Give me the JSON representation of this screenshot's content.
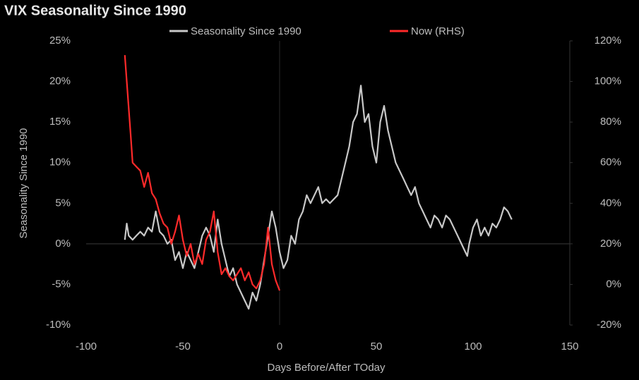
{
  "chart_data": {
    "type": "line",
    "title": "VIX Seasonality Since 1990",
    "xlabel": "Days Before/After TOday",
    "ylabel": "Seasonality Since 1990",
    "xlim": [
      -100,
      150
    ],
    "xticks": [
      -100,
      -50,
      0,
      50,
      100,
      150
    ],
    "ylim": [
      -10,
      25
    ],
    "yticks": [
      {
        "value": -10,
        "label": "-10%"
      },
      {
        "value": -5,
        "label": "-5%"
      },
      {
        "value": 0,
        "label": "0%"
      },
      {
        "value": 5,
        "label": "5%"
      },
      {
        "value": 10,
        "label": "10%"
      },
      {
        "value": 15,
        "label": "15%"
      },
      {
        "value": 20,
        "label": "20%"
      },
      {
        "value": 25,
        "label": "25%"
      }
    ],
    "y2lim": [
      -20,
      120
    ],
    "y2ticks": [
      {
        "value": -20,
        "label": "-20%"
      },
      {
        "value": 0,
        "label": "0%"
      },
      {
        "value": 20,
        "label": "20%"
      },
      {
        "value": 40,
        "label": "40%"
      },
      {
        "value": 60,
        "label": "60%"
      },
      {
        "value": 80,
        "label": "80%"
      },
      {
        "value": 100,
        "label": "100%"
      },
      {
        "value": 120,
        "label": "120%"
      }
    ],
    "series": [
      {
        "name": "Seasonality Since 1990",
        "color": "#c8c8c8",
        "axis": "y",
        "x": [
          -80,
          -79,
          -78,
          -76,
          -74,
          -72,
          -70,
          -68,
          -66,
          -64,
          -62,
          -60,
          -58,
          -56,
          -54,
          -52,
          -50,
          -48,
          -46,
          -44,
          -42,
          -40,
          -38,
          -36,
          -34,
          -32,
          -30,
          -28,
          -26,
          -24,
          -22,
          -20,
          -18,
          -16,
          -14,
          -12,
          -10,
          -8,
          -6,
          -4,
          -2,
          0,
          2,
          4,
          6,
          8,
          10,
          12,
          14,
          16,
          18,
          20,
          22,
          24,
          26,
          28,
          30,
          32,
          34,
          36,
          38,
          40,
          42,
          44,
          46,
          48,
          50,
          52,
          54,
          56,
          58,
          60,
          62,
          64,
          66,
          68,
          70,
          72,
          74,
          76,
          78,
          80,
          82,
          84,
          86,
          88,
          90,
          92,
          94,
          96,
          97,
          98,
          100,
          102,
          104,
          106,
          108,
          110,
          112,
          114,
          116,
          118,
          120
        ],
        "values": [
          0.5,
          2.5,
          1,
          0.5,
          1,
          1.5,
          1,
          2,
          1.5,
          4,
          1.5,
          1,
          0,
          0.5,
          -2,
          -1,
          -3,
          -1,
          -2,
          -3,
          -1,
          1,
          2,
          1,
          -1,
          3,
          0,
          -2,
          -4,
          -3,
          -5,
          -6,
          -7,
          -8,
          -6,
          -7,
          -5,
          -2,
          1,
          4,
          2,
          -1,
          -3,
          -2,
          1,
          0,
          3,
          4,
          6,
          5,
          6,
          7,
          5,
          5.5,
          5,
          5.5,
          6,
          8,
          10,
          12,
          15,
          16,
          19.5,
          15,
          16,
          12,
          10,
          15,
          17,
          14,
          12,
          10,
          9,
          8,
          7,
          6,
          7,
          5,
          4,
          3,
          2,
          3.5,
          3,
          2,
          3.5,
          3,
          2,
          1,
          0,
          -1,
          -1.5,
          0,
          2,
          3,
          1,
          2,
          1,
          2.5,
          2,
          3,
          4.5,
          4,
          3
        ]
      },
      {
        "name": "Now (RHS)",
        "color": "#ff2a2a",
        "axis": "y2",
        "x": [
          -80,
          -77,
          -76,
          -74,
          -72,
          -70,
          -68,
          -66,
          -64,
          -62,
          -60,
          -58,
          -56,
          -54,
          -52,
          -50,
          -48,
          -46,
          -44,
          -42,
          -40,
          -38,
          -36,
          -34,
          -32,
          -30,
          -28,
          -26,
          -24,
          -22,
          -20,
          -18,
          -16,
          -14,
          -12,
          -10,
          -8,
          -6,
          -4,
          -2,
          0
        ],
        "values": [
          113,
          74,
          60,
          58,
          56,
          48,
          55,
          45,
          42,
          35,
          30,
          28,
          20,
          26,
          34,
          22,
          14,
          20,
          10,
          15,
          10,
          22,
          26,
          36,
          16,
          5,
          8,
          4,
          2,
          5,
          8,
          2,
          6,
          0,
          -2,
          2,
          10,
          28,
          10,
          2,
          -3
        ]
      }
    ]
  }
}
